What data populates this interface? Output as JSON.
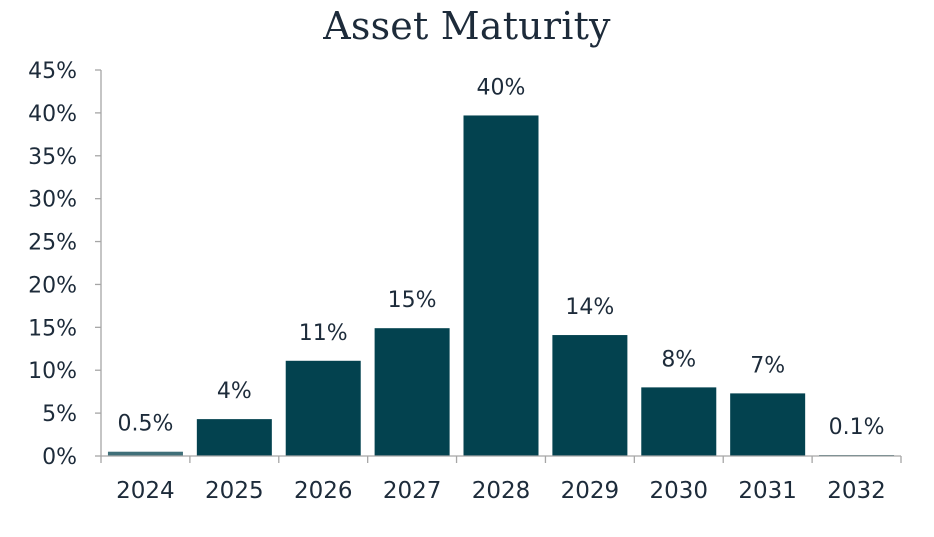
{
  "chart_data": {
    "type": "bar",
    "title": "Asset Maturity",
    "xlabel": "",
    "ylabel": "",
    "categories": [
      "2024",
      "2025",
      "2026",
      "2027",
      "2028",
      "2029",
      "2030",
      "2031",
      "2032"
    ],
    "values": [
      0.5,
      4.3,
      11.1,
      14.9,
      39.7,
      14.1,
      8.0,
      7.3,
      0.1
    ],
    "data_labels": [
      "0.5%",
      "4%",
      "11%",
      "15%",
      "40%",
      "14%",
      "8%",
      "7%",
      "0.1%"
    ],
    "y_ticks": [
      "0%",
      "5%",
      "10%",
      "15%",
      "20%",
      "25%",
      "30%",
      "35%",
      "40%",
      "45%"
    ],
    "ylim": [
      0,
      45
    ],
    "grid": false,
    "legend": "none",
    "colors": {
      "bar": "#03424f",
      "bar_small": "#3f6f79",
      "axis": "#a6a6a6",
      "text": "#1d2b3a"
    }
  }
}
